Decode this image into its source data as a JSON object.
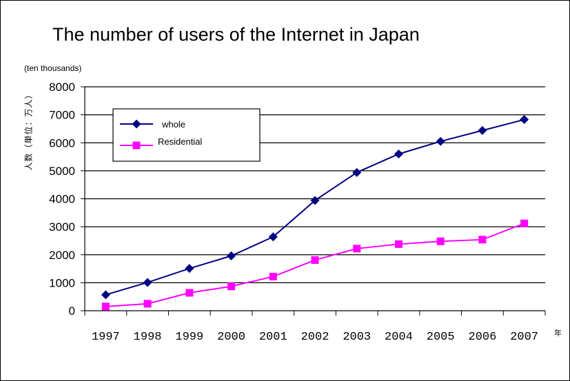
{
  "chart_data": {
    "type": "line",
    "title": "The number of users of the Internet in Japan",
    "unit_note": "(ten thousands)",
    "xlabel": "年",
    "ylabel": "人数（単位：万人）",
    "ylim": [
      0,
      8000
    ],
    "yticks": [
      0,
      1000,
      2000,
      3000,
      4000,
      5000,
      6000,
      7000,
      8000
    ],
    "grid": true,
    "legend_position": "top-left",
    "categories": [
      "1997",
      "1998",
      "1999",
      "2000",
      "2001",
      "2002",
      "2003",
      "2004",
      "2005",
      "2006",
      "2007"
    ],
    "series": [
      {
        "name": "whole",
        "color": "#000080",
        "marker": "diamond",
        "values": [
          570,
          1010,
          1510,
          1960,
          2640,
          3940,
          4940,
          5600,
          6050,
          6440,
          6830
        ]
      },
      {
        "name": "Residential",
        "color": "#FF00FF",
        "marker": "square",
        "values": [
          150,
          250,
          640,
          870,
          1220,
          1810,
          2220,
          2380,
          2480,
          2540,
          3120
        ]
      }
    ]
  }
}
